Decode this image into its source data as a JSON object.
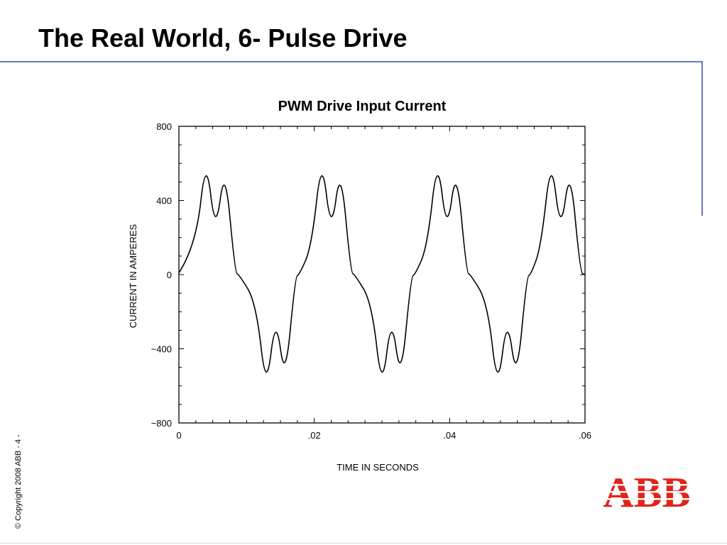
{
  "slide": {
    "title": "The Real World, 6- Pulse Drive",
    "copyright": "© Copyright 2008 ABB - 4 -",
    "logo_text": "ABB",
    "accent_color": "#6a73c6",
    "logo_color": "#e2231a"
  },
  "chart_data": {
    "type": "line",
    "title": "PWM Drive Input Current",
    "xlabel": "TIME IN SECONDS",
    "ylabel": "CURRENT IN AMPERES",
    "xlim": [
      0,
      0.06
    ],
    "ylim": [
      -800,
      800
    ],
    "x_ticks": [
      0,
      0.02,
      0.04,
      0.06
    ],
    "x_tick_labels": [
      "0",
      ".02",
      ".04",
      ".06"
    ],
    "y_ticks": [
      800,
      400,
      0,
      -400,
      -800
    ],
    "y_tick_labels": [
      "800",
      "400",
      "0",
      "−400",
      "−800"
    ],
    "period": 0.0167,
    "series": [
      {
        "x": [
          0,
          0.0025,
          0.004,
          0.0054,
          0.0068,
          0.0083,
          0.0089,
          0.0114,
          0.0129,
          0.0143,
          0.0157,
          0.0172,
          0.0178,
          0.0196,
          0.0211,
          0.0225,
          0.0239,
          0.0254,
          0.026,
          0.0285,
          0.03,
          0.0314,
          0.0328,
          0.0343,
          0.0349,
          0.0367,
          0.0382,
          0.0396,
          0.041,
          0.0425,
          0.0431,
          0.0456,
          0.0471,
          0.0485,
          0.0499,
          0.0514,
          0.052,
          0.0535,
          0.055,
          0.0564,
          0.0578,
          0.0593,
          0.06
        ],
        "y": [
          10,
          150,
          650,
          210,
          600,
          10,
          0,
          -150,
          -640,
          -210,
          -590,
          -10,
          0,
          150,
          650,
          210,
          600,
          10,
          0,
          -150,
          -640,
          -210,
          -590,
          -10,
          0,
          150,
          650,
          210,
          600,
          10,
          0,
          -150,
          -640,
          -210,
          -590,
          -10,
          0,
          150,
          650,
          210,
          600,
          10,
          0
        ]
      }
    ]
  }
}
